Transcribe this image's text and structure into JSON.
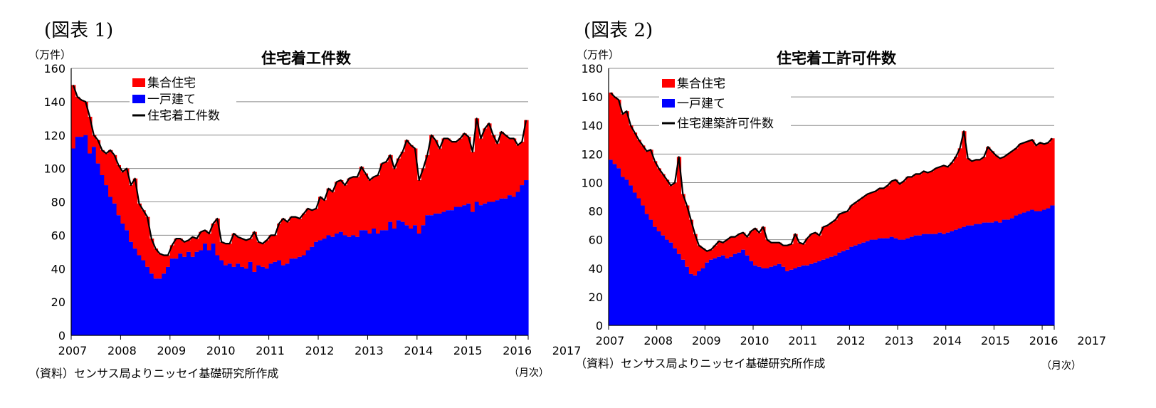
{
  "chart_data": [
    {
      "type": "area",
      "figure_label": "(図表 1)",
      "title": "住宅着工件数",
      "unit_label": "（万件）",
      "source_note": "（資料）センサス局よりニッセイ基礎研究所作成",
      "x_unit_label": "（月次）",
      "ylim": [
        0,
        160
      ],
      "yticks": [
        0,
        20,
        40,
        60,
        80,
        100,
        120,
        140,
        160
      ],
      "xtick_labels": [
        "2007",
        "2008",
        "2009",
        "2010",
        "2011",
        "2012",
        "2013",
        "2014",
        "2015",
        "2016",
        "2017"
      ],
      "x_start": "2007-01",
      "grid": true,
      "legend_position": "top-left",
      "colors": {
        "multi": "#ff0000",
        "single": "#0000ff",
        "total": "#000000"
      },
      "series": [
        {
          "name": "集合住宅",
          "kind": "stacked-area",
          "values": [
            150,
            143,
            141,
            140,
            131,
            120,
            117,
            111,
            109,
            111,
            108,
            102,
            98,
            100,
            90,
            94,
            79,
            75,
            71,
            58,
            52,
            49,
            48,
            48,
            54,
            58,
            58,
            56,
            57,
            59,
            58,
            62,
            63,
            61,
            67,
            70,
            56,
            55,
            55,
            61,
            59,
            58,
            57,
            58,
            62,
            56,
            55,
            57,
            60,
            60,
            67,
            70,
            68,
            71,
            71,
            70,
            73,
            76,
            75,
            76,
            83,
            81,
            88,
            86,
            92,
            93,
            90,
            94,
            95,
            95,
            101,
            97,
            93,
            95,
            96,
            103,
            104,
            108,
            100,
            106,
            110,
            117,
            114,
            112,
            93,
            100,
            108,
            120,
            117,
            112,
            118,
            118,
            116,
            116,
            118,
            121,
            119,
            110,
            130,
            118,
            124,
            127,
            120,
            115,
            122,
            120,
            118,
            118,
            114,
            116,
            129
          ]
        },
        {
          "name": "一戸建て",
          "kind": "stacked-area",
          "values": [
            112,
            119,
            119,
            120,
            109,
            113,
            103,
            96,
            90,
            83,
            79,
            72,
            67,
            63,
            56,
            52,
            48,
            45,
            41,
            37,
            34,
            34,
            37,
            41,
            46,
            46,
            49,
            47,
            50,
            47,
            50,
            51,
            55,
            51,
            55,
            48,
            45,
            42,
            43,
            41,
            43,
            41,
            40,
            44,
            38,
            42,
            41,
            40,
            43,
            44,
            45,
            42,
            43,
            46,
            46,
            47,
            48,
            51,
            53,
            56,
            57,
            58,
            60,
            59,
            61,
            62,
            60,
            59,
            60,
            59,
            63,
            63,
            61,
            64,
            61,
            63,
            63,
            68,
            64,
            69,
            68,
            66,
            64,
            66,
            61,
            66,
            72,
            72,
            73,
            73,
            74,
            75,
            75,
            77,
            77,
            78,
            79,
            74,
            80,
            78,
            79,
            80,
            80,
            81,
            82,
            82,
            84,
            83,
            86,
            90,
            93
          ]
        },
        {
          "name": "住宅着工件数",
          "kind": "line",
          "values": [
            150,
            143,
            141,
            140,
            131,
            120,
            117,
            111,
            109,
            111,
            108,
            102,
            98,
            100,
            90,
            94,
            79,
            75,
            71,
            58,
            52,
            49,
            48,
            48,
            54,
            58,
            58,
            56,
            57,
            59,
            58,
            62,
            63,
            61,
            67,
            70,
            56,
            55,
            55,
            61,
            59,
            58,
            57,
            58,
            62,
            56,
            55,
            57,
            60,
            60,
            67,
            70,
            68,
            71,
            71,
            70,
            73,
            76,
            75,
            76,
            83,
            81,
            88,
            86,
            92,
            93,
            90,
            94,
            95,
            95,
            101,
            97,
            93,
            95,
            96,
            103,
            104,
            108,
            100,
            106,
            110,
            117,
            114,
            112,
            93,
            100,
            108,
            120,
            117,
            112,
            118,
            118,
            116,
            116,
            118,
            121,
            119,
            110,
            130,
            118,
            124,
            127,
            120,
            115,
            122,
            120,
            118,
            118,
            114,
            116,
            129
          ]
        }
      ]
    },
    {
      "type": "area",
      "figure_label": "(図表 2)",
      "title": "住宅着工許可件数",
      "unit_label": "（万件）",
      "source_note": "（資料）センサス局よりニッセイ基礎研究所作成",
      "x_unit_label": "（月次）",
      "ylim": [
        0,
        180
      ],
      "yticks": [
        0,
        20,
        40,
        60,
        80,
        100,
        120,
        140,
        160,
        180
      ],
      "xtick_labels": [
        "2007",
        "2008",
        "2009",
        "2010",
        "2011",
        "2012",
        "2013",
        "2014",
        "2015",
        "2016",
        "2017"
      ],
      "x_start": "2007-01",
      "grid": true,
      "legend_position": "top-left",
      "colors": {
        "multi": "#ff0000",
        "single": "#0000ff",
        "total": "#000000"
      },
      "series": [
        {
          "name": "集合住宅",
          "kind": "stacked-area",
          "values": [
            163,
            160,
            158,
            148,
            150,
            140,
            135,
            130,
            126,
            122,
            123,
            115,
            110,
            106,
            102,
            98,
            100,
            118,
            92,
            84,
            74,
            64,
            56,
            54,
            52,
            53,
            56,
            59,
            58,
            60,
            62,
            62,
            64,
            65,
            62,
            66,
            68,
            65,
            69,
            60,
            58,
            58,
            58,
            56,
            56,
            57,
            64,
            58,
            57,
            61,
            64,
            65,
            63,
            69,
            70,
            72,
            74,
            78,
            79,
            80,
            84,
            86,
            88,
            90,
            92,
            93,
            94,
            96,
            96,
            98,
            101,
            102,
            99,
            101,
            104,
            104,
            106,
            106,
            108,
            107,
            108,
            110,
            111,
            112,
            111,
            114,
            118,
            124,
            136,
            117,
            115,
            116,
            116,
            118,
            125,
            122,
            119,
            117,
            118,
            120,
            122,
            124,
            127,
            128,
            129,
            130,
            126,
            128,
            127,
            128,
            131
          ]
        },
        {
          "name": "一戸建て",
          "kind": "stacked-area",
          "values": [
            116,
            113,
            110,
            104,
            102,
            98,
            93,
            89,
            84,
            78,
            74,
            69,
            66,
            63,
            60,
            58,
            54,
            50,
            46,
            41,
            36,
            35,
            38,
            40,
            44,
            46,
            47,
            48,
            49,
            47,
            48,
            50,
            51,
            53,
            49,
            45,
            42,
            41,
            40,
            40,
            41,
            42,
            43,
            41,
            38,
            39,
            40,
            41,
            42,
            42,
            43,
            44,
            45,
            46,
            47,
            48,
            49,
            51,
            52,
            53,
            55,
            56,
            57,
            58,
            59,
            60,
            60,
            61,
            61,
            61,
            62,
            61,
            60,
            60,
            61,
            62,
            63,
            63,
            64,
            64,
            64,
            64,
            65,
            64,
            65,
            66,
            67,
            68,
            69,
            70,
            70,
            71,
            71,
            72,
            72,
            72,
            73,
            72,
            74,
            74,
            75,
            77,
            78,
            79,
            80,
            81,
            80,
            80,
            81,
            82,
            84
          ]
        },
        {
          "name": "住宅建築許可件数",
          "kind": "line",
          "values": [
            163,
            160,
            158,
            148,
            150,
            140,
            135,
            130,
            126,
            122,
            123,
            115,
            110,
            106,
            102,
            98,
            100,
            118,
            92,
            84,
            74,
            64,
            56,
            54,
            52,
            53,
            56,
            59,
            58,
            60,
            62,
            62,
            64,
            65,
            62,
            66,
            68,
            65,
            69,
            60,
            58,
            58,
            58,
            56,
            56,
            57,
            64,
            58,
            57,
            61,
            64,
            65,
            63,
            69,
            70,
            72,
            74,
            78,
            79,
            80,
            84,
            86,
            88,
            90,
            92,
            93,
            94,
            96,
            96,
            98,
            101,
            102,
            99,
            101,
            104,
            104,
            106,
            106,
            108,
            107,
            108,
            110,
            111,
            112,
            111,
            114,
            118,
            124,
            136,
            117,
            115,
            116,
            116,
            118,
            125,
            122,
            119,
            117,
            118,
            120,
            122,
            124,
            127,
            128,
            129,
            130,
            126,
            128,
            127,
            128,
            131
          ]
        }
      ]
    }
  ]
}
